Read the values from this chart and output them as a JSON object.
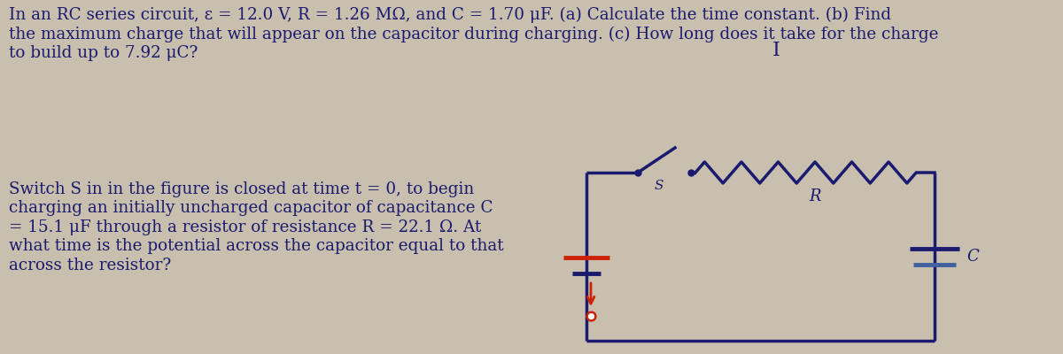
{
  "background_color": "#c8bfae",
  "top_text_line1": "In an RC series circuit, ε = 12.0 V, R = 1.26 MΩ, and C = 1.70 μF. (a) Calculate the time constant. (b) Find",
  "top_text_line2": "the maximum charge that will appear on the capacitor during charging. (c) How long does it take for the charge",
  "top_text_line3": "to build up to 7.92 μC?",
  "cursor_symbol": "I",
  "bottom_text_line1": "Switch S in in the figure is closed at time t = 0, to begin",
  "bottom_text_line2": "charging an initially uncharged capacitor of capacitance C",
  "bottom_text_line3": "= 15.1 μF through a resistor of resistance R = 22.1 Ω. At",
  "bottom_text_line4": "what time is the potential across the capacitor equal to that",
  "bottom_text_line5": "across the resistor?",
  "text_color": "#1a1a6e",
  "circuit_color": "#1a1a6e",
  "battery_red": "#cc2200",
  "font_size": 13.2,
  "resistor_label": "R",
  "capacitor_label": "C",
  "switch_label": "S"
}
